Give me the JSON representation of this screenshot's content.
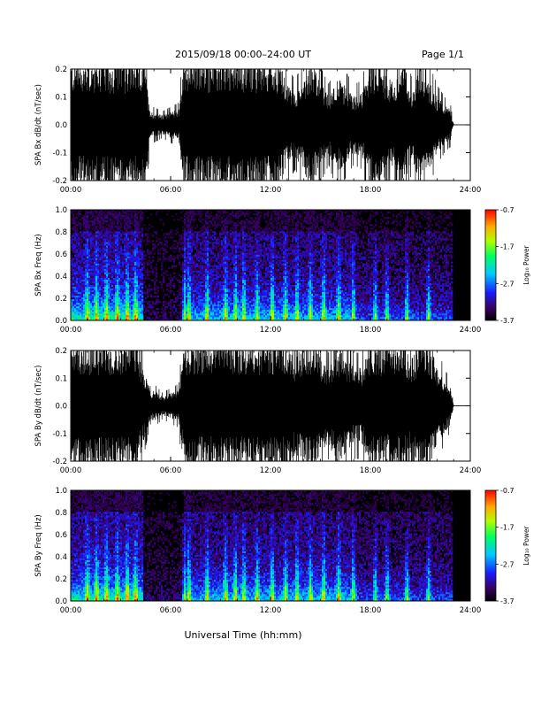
{
  "header": {
    "title": "2015/09/18  00:00–24:00 UT",
    "page": "Page 1/1"
  },
  "colorbar": {
    "label": "Log₁₀ Power",
    "ticks": [
      "-0.7",
      "-1.7",
      "-2.7",
      "-3.7"
    ]
  },
  "chart_data": [
    {
      "type": "line",
      "ylabel": "SPA Bx dB/dt (nT/sec)",
      "x_ticks": [
        "00:00",
        "06:00",
        "12:00",
        "18:00",
        "24:00"
      ],
      "y_ticks": [
        "0.2",
        "0.1",
        "0.0",
        "-0.1",
        "-0.2"
      ],
      "xlim": [
        0,
        24
      ],
      "ylim": [
        -0.2,
        0.2
      ],
      "series": [
        {
          "x": [
            0,
            0.5,
            1.0,
            1.5,
            2.0,
            2.5,
            3.0,
            3.5,
            4.0,
            4.4,
            4.8,
            5.0,
            5.5,
            6.0,
            6.5,
            6.8,
            7.0,
            7.5,
            8.0,
            8.5,
            9.0,
            9.5,
            10.0,
            10.5,
            11.0,
            11.5,
            12.0,
            12.5,
            13.0,
            13.5,
            14.0,
            14.5,
            15.0,
            15.5,
            16.0,
            16.5,
            17.0,
            17.5,
            18.0,
            18.5,
            19.0,
            19.5,
            20.0,
            20.5,
            21.0,
            21.5,
            22.0,
            22.5,
            22.8,
            23.0,
            23.5,
            24.0
          ],
          "values": [
            0.2,
            0.2,
            0.2,
            0.2,
            0.2,
            0.2,
            0.2,
            0.2,
            0.2,
            0.2,
            0.04,
            0.04,
            0.03,
            0.04,
            0.05,
            0.2,
            0.2,
            0.2,
            0.2,
            0.2,
            0.2,
            0.2,
            0.2,
            0.2,
            0.2,
            0.2,
            0.2,
            0.2,
            0.13,
            0.1,
            0.15,
            0.2,
            0.13,
            0.09,
            0.15,
            0.12,
            0.09,
            0.1,
            0.2,
            0.2,
            0.15,
            0.13,
            0.2,
            0.1,
            0.2,
            0.14,
            0.09,
            0.06,
            0.05,
            0.0,
            0.0,
            0.0
          ]
        }
      ]
    },
    {
      "type": "heatmap",
      "ylabel": "SPA Bx Freq (Hz)",
      "x_ticks": [
        "00:00",
        "06:00",
        "12:00",
        "18:00",
        "24:00"
      ],
      "y_ticks": [
        "1.0",
        "0.8",
        "0.6",
        "0.4",
        "0.2",
        "0.0"
      ],
      "xlim": [
        0,
        24
      ],
      "ylim": [
        0,
        1.0
      ],
      "zlim": [
        -3.7,
        -0.7
      ]
    },
    {
      "type": "line",
      "ylabel": "SPA By dB/dt (nT/sec)",
      "x_ticks": [
        "00:00",
        "06:00",
        "12:00",
        "18:00",
        "24:00"
      ],
      "y_ticks": [
        "0.2",
        "0.1",
        "0.0",
        "-0.1",
        "-0.2"
      ],
      "xlim": [
        0,
        24
      ],
      "ylim": [
        -0.2,
        0.2
      ],
      "series": [
        {
          "x": [
            0,
            0.5,
            1.0,
            1.5,
            2.0,
            2.5,
            3.0,
            3.5,
            4.0,
            4.4,
            4.8,
            5.0,
            5.5,
            6.0,
            6.5,
            6.8,
            7.0,
            7.5,
            8.0,
            8.5,
            9.0,
            9.5,
            10.0,
            10.5,
            11.0,
            11.5,
            12.0,
            12.5,
            13.0,
            13.5,
            14.0,
            14.5,
            15.0,
            15.5,
            16.0,
            16.5,
            17.0,
            17.5,
            18.0,
            18.5,
            19.0,
            19.5,
            20.0,
            20.5,
            21.0,
            21.5,
            22.0,
            22.5,
            22.8,
            23.0,
            23.5,
            24.0
          ],
          "values": [
            0.2,
            0.2,
            0.2,
            0.2,
            0.2,
            0.2,
            0.2,
            0.2,
            0.2,
            0.11,
            0.04,
            0.05,
            0.03,
            0.04,
            0.05,
            0.2,
            0.2,
            0.2,
            0.2,
            0.2,
            0.2,
            0.2,
            0.2,
            0.2,
            0.2,
            0.2,
            0.2,
            0.2,
            0.2,
            0.15,
            0.2,
            0.2,
            0.15,
            0.12,
            0.2,
            0.15,
            0.12,
            0.12,
            0.2,
            0.2,
            0.18,
            0.2,
            0.2,
            0.15,
            0.2,
            0.2,
            0.13,
            0.08,
            0.06,
            0.0,
            0.0,
            0.0
          ]
        }
      ]
    },
    {
      "type": "heatmap",
      "ylabel": "SPA By Freq (Hz)",
      "xlabel": "Universal Time (hh:mm)",
      "x_ticks": [
        "00:00",
        "06:00",
        "12:00",
        "18:00",
        "24:00"
      ],
      "y_ticks": [
        "1.0",
        "0.8",
        "0.6",
        "0.4",
        "0.2",
        "0.0"
      ],
      "xlim": [
        0,
        24
      ],
      "ylim": [
        0,
        1.0
      ],
      "zlim": [
        -3.7,
        -0.7
      ]
    }
  ]
}
